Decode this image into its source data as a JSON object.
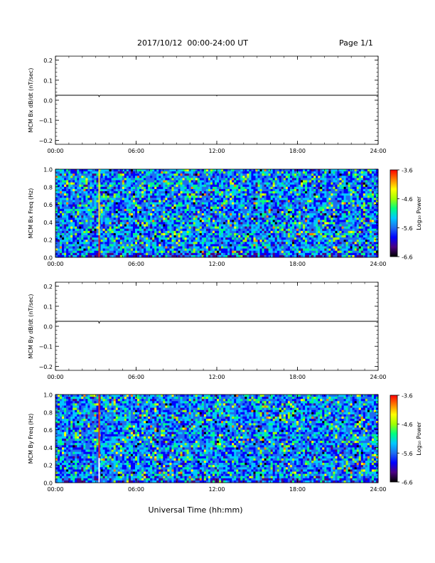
{
  "header": {
    "title": "2017/10/12  00:00-24:00 UT",
    "page": "Page 1/1"
  },
  "footer": {
    "xlabel": "Universal Time (hh:mm)"
  },
  "colors": {
    "trace": "#000000",
    "frame": "#000000",
    "event_line_bx": "#f0e020",
    "event_line_by": "#e03020",
    "event_line_by_low": "#ffffff",
    "colorscale": [
      "#000000",
      "#4b0082",
      "#0000ff",
      "#1e6ef0",
      "#00c8ff",
      "#00ff80",
      "#a0ff00",
      "#ffff00",
      "#ff8000",
      "#ff0000"
    ]
  },
  "chart_data": [
    {
      "type": "line",
      "id": "bx_dbdt",
      "ylabel": "MCM Bx dB/dt (nT/sec)",
      "ylim": [
        -0.22,
        0.22
      ],
      "yticks": [
        -0.2,
        -0.1,
        0.0,
        0.1,
        0.2
      ],
      "ytick_labels": [
        "−0.2",
        "−0.1",
        "0.0",
        "0.1",
        "0.2"
      ],
      "xlim": [
        0,
        24
      ],
      "xticks": [
        0,
        6,
        12,
        18,
        24
      ],
      "xtick_labels": [
        "00:00",
        "06:00",
        "12:00",
        "18:00",
        "24:00"
      ],
      "series": [
        {
          "x": [
            0,
            3.2,
            3.25,
            3.3,
            11.98,
            12.0,
            12.02,
            24
          ],
          "y": [
            0.025,
            0.025,
            0.018,
            0.025,
            0.025,
            0.022,
            0.025,
            0.025
          ]
        }
      ]
    },
    {
      "type": "heatmap",
      "id": "bx_spec",
      "ylabel": "MCM Bx Freq (Hz)",
      "ylim": [
        0,
        1.0
      ],
      "yticks": [
        0.0,
        0.2,
        0.4,
        0.6,
        0.8,
        1.0
      ],
      "ytick_labels": [
        "0.0",
        "0.2",
        "0.4",
        "0.6",
        "0.8",
        "1.0"
      ],
      "xlim": [
        0,
        24
      ],
      "xticks": [
        0,
        6,
        12,
        18,
        24
      ],
      "xtick_labels": [
        "00:00",
        "06:00",
        "12:00",
        "18:00",
        "24:00"
      ],
      "event_x": 3.25,
      "colorbar": {
        "label": "Log₁₀ Power",
        "range": [
          -6.6,
          -3.6
        ],
        "ticks": [
          "-3.6",
          "-4.6",
          "-5.6",
          "-6.6"
        ]
      }
    },
    {
      "type": "line",
      "id": "by_dbdt",
      "ylabel": "MCM By dB/dt (nT/sec)",
      "ylim": [
        -0.22,
        0.22
      ],
      "yticks": [
        -0.2,
        -0.1,
        0.0,
        0.1,
        0.2
      ],
      "ytick_labels": [
        "−0.2",
        "−0.1",
        "0.0",
        "0.1",
        "0.2"
      ],
      "xlim": [
        0,
        24
      ],
      "xticks": [
        0,
        6,
        12,
        18,
        24
      ],
      "xtick_labels": [
        "00:00",
        "06:00",
        "12:00",
        "18:00",
        "24:00"
      ],
      "series": [
        {
          "x": [
            0,
            3.2,
            3.25,
            3.3,
            24
          ],
          "y": [
            0.025,
            0.025,
            0.016,
            0.025,
            0.025
          ]
        }
      ]
    },
    {
      "type": "heatmap",
      "id": "by_spec",
      "ylabel": "MCM By Freq (Hz)",
      "ylim": [
        0,
        1.0
      ],
      "yticks": [
        0.0,
        0.2,
        0.4,
        0.6,
        0.8,
        1.0
      ],
      "ytick_labels": [
        "0.0",
        "0.2",
        "0.4",
        "0.6",
        "0.8",
        "1.0"
      ],
      "xlim": [
        0,
        24
      ],
      "xticks": [
        0,
        6,
        12,
        18,
        24
      ],
      "xtick_labels": [
        "00:00",
        "06:00",
        "12:00",
        "18:00",
        "24:00"
      ],
      "event_x": 3.25,
      "colorbar": {
        "label": "Log₁₀ Power",
        "range": [
          -6.6,
          -3.6
        ],
        "ticks": [
          "-3.6",
          "-4.6",
          "-5.6",
          "-6.6"
        ]
      }
    }
  ]
}
